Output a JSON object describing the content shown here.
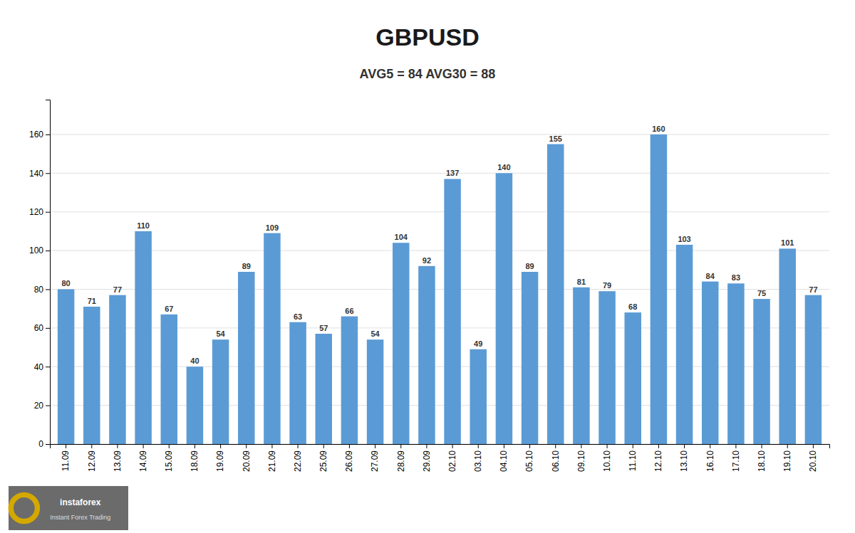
{
  "chart_data": {
    "type": "bar",
    "title": "GBPUSD",
    "subtitle": "AVG5 = 84 AVG30 = 88",
    "categories": [
      "11.09",
      "12.09",
      "13.09",
      "14.09",
      "15.09",
      "18.09",
      "19.09",
      "20.09",
      "21.09",
      "22.09",
      "25.09",
      "26.09",
      "27.09",
      "28.09",
      "29.09",
      "02.10",
      "03.10",
      "04.10",
      "05.10",
      "06.10",
      "09.10",
      "10.10",
      "11.10",
      "12.10",
      "13.10",
      "16.10",
      "17.10",
      "18.10",
      "19.10",
      "20.10"
    ],
    "values": [
      80,
      71,
      77,
      110,
      67,
      40,
      54,
      89,
      109,
      63,
      57,
      66,
      54,
      104,
      92,
      137,
      49,
      140,
      89,
      155,
      81,
      79,
      68,
      160,
      103,
      84,
      83,
      75,
      101,
      77
    ],
    "color": "#5B9BD5",
    "ylim": [
      0,
      178
    ],
    "yticks": [
      0,
      20,
      40,
      60,
      80,
      100,
      120,
      140,
      160
    ],
    "grid": true,
    "data_labels": true,
    "annotations": [
      "instaforex",
      "Instant Forex Trading"
    ]
  }
}
